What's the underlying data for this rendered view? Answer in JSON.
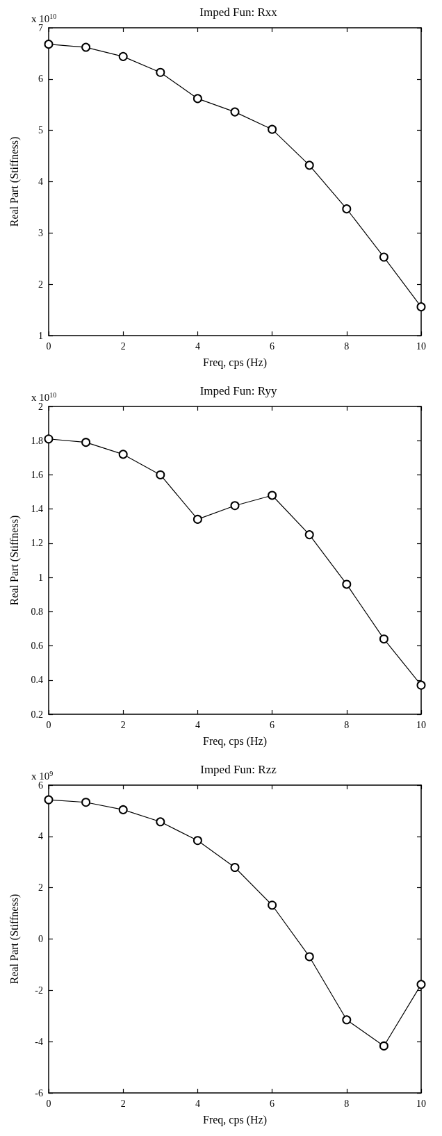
{
  "chart_data": [
    {
      "type": "line",
      "title": "Imped Fun: Rxx",
      "xlabel": "Freq, cps (Hz)",
      "ylabel": "Real Part (Stiffness)",
      "annotations": [
        "x 10$^{10}$"
      ],
      "x": [
        0,
        1,
        2,
        3,
        4,
        5,
        6,
        7,
        8,
        9,
        10
      ],
      "series": [
        {
          "color": "#000000",
          "values": [
            6.68,
            6.62,
            6.44,
            6.13,
            5.62,
            5.36,
            5.02,
            4.32,
            3.47,
            2.53,
            1.56
          ]
        }
      ],
      "xlim": [
        0,
        10
      ],
      "xticks": [
        0,
        2,
        4,
        6,
        8,
        10
      ],
      "ylim": [
        1,
        7
      ],
      "yticks": [
        1,
        2,
        3,
        4,
        5,
        6,
        7
      ],
      "marker": "circle",
      "line_style": "solid"
    },
    {
      "type": "line",
      "title": "Imped Fun: Ryy",
      "xlabel": "Freq, cps (Hz)",
      "ylabel": "Real Part (Stiffness)",
      "annotations": [
        "x 10$^{10}$"
      ],
      "x": [
        0,
        1,
        2,
        3,
        4,
        5,
        6,
        7,
        8,
        9,
        10
      ],
      "series": [
        {
          "color": "#000000",
          "values": [
            1.81,
            1.79,
            1.72,
            1.6,
            1.34,
            1.42,
            1.48,
            1.25,
            0.96,
            0.64,
            0.37
          ]
        }
      ],
      "xlim": [
        0,
        10
      ],
      "xticks": [
        0,
        2,
        4,
        6,
        8,
        10
      ],
      "ylim": [
        0.2,
        2
      ],
      "yticks": [
        0.2,
        0.4,
        0.6,
        0.8,
        1,
        1.2,
        1.4,
        1.6,
        1.8,
        2
      ],
      "marker": "circle",
      "line_style": "solid"
    },
    {
      "type": "line",
      "title": "Imped Fun: Rzz",
      "xlabel": "Freq, cps (Hz)",
      "ylabel": "Real Part (Stiffness)",
      "annotations": [
        "x 10$^{9}$"
      ],
      "x": [
        0,
        1,
        2,
        3,
        4,
        5,
        6,
        7,
        8,
        9,
        10
      ],
      "series": [
        {
          "color": "#000000",
          "values": [
            5.43,
            5.33,
            5.04,
            4.57,
            3.84,
            2.79,
            1.32,
            -0.69,
            -3.15,
            -4.17,
            -1.77
          ]
        }
      ],
      "xlim": [
        0,
        10
      ],
      "xticks": [
        0,
        2,
        4,
        6,
        8,
        10
      ],
      "ylim": [
        -6,
        6
      ],
      "yticks": [
        -6,
        -4,
        -2,
        0,
        2,
        4,
        6
      ],
      "marker": "circle",
      "line_style": "solid"
    }
  ]
}
